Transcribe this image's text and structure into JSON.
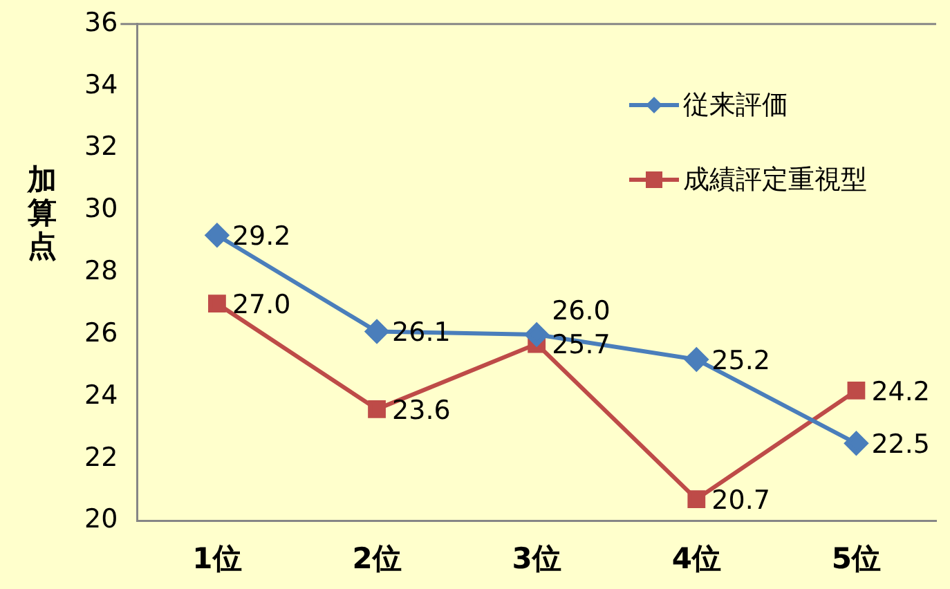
{
  "chart_data": {
    "type": "line",
    "ylabel": "加算点",
    "categories": [
      "1位",
      "2位",
      "3位",
      "4位",
      "5位"
    ],
    "series": [
      {
        "name": "従来評価",
        "color": "#4a7ebb",
        "marker": "diamond",
        "values": [
          29.2,
          26.1,
          26.0,
          25.2,
          22.5
        ],
        "value_labels": [
          "29.2",
          "26.1",
          "26.0",
          "25.2",
          "22.5"
        ]
      },
      {
        "name": "成績評定重視型",
        "color": "#be4b48",
        "marker": "square",
        "values": [
          27.0,
          23.6,
          25.7,
          20.7,
          24.2
        ],
        "value_labels": [
          "27.0",
          "23.6",
          "25.7",
          "20.7",
          "24.2"
        ]
      }
    ],
    "ylim": [
      20,
      36
    ],
    "yticks": [
      20,
      22,
      24,
      26,
      28,
      30,
      32,
      34,
      36
    ],
    "grid": false,
    "legend": "top right",
    "line_style": "solid"
  }
}
